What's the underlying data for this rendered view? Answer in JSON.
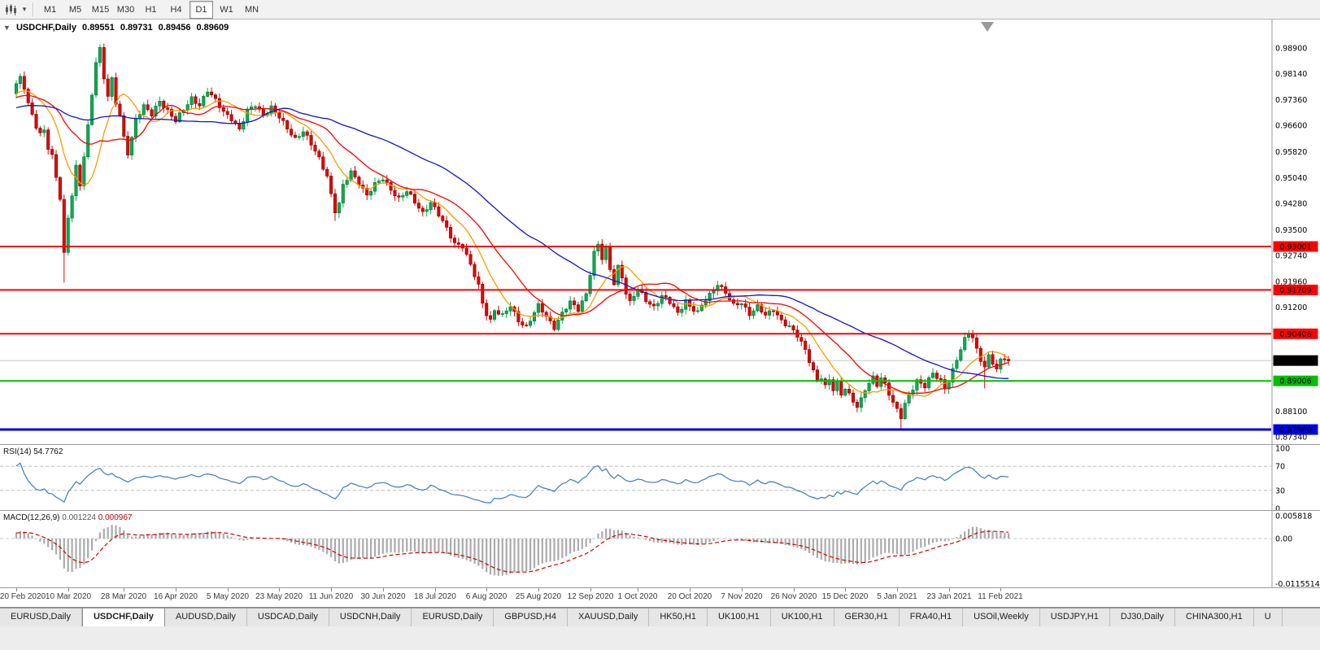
{
  "toolbar": {
    "timeframes": [
      {
        "label": "M1",
        "active": false
      },
      {
        "label": "M5",
        "active": false
      },
      {
        "label": "M15",
        "active": false
      },
      {
        "label": "M30",
        "active": false
      },
      {
        "label": "H1",
        "active": false
      },
      {
        "label": "H4",
        "active": false
      },
      {
        "label": "D1",
        "active": true
      },
      {
        "label": "W1",
        "active": false
      },
      {
        "label": "MN",
        "active": false
      }
    ]
  },
  "title": {
    "symbol": "USDCHF,Daily",
    "open": "0.89551",
    "high": "0.89731",
    "low": "0.89456",
    "close": "0.89609"
  },
  "rsi_panel": {
    "name": "RSI(14)",
    "value": "54.7762",
    "axis": [
      "100",
      "70",
      "30",
      "0"
    ],
    "line_color": "#3E7BC0"
  },
  "macd_panel": {
    "name": "MACD(12,26,9)",
    "value_main": "0.001224",
    "value_signal": "0.000967",
    "axis": [
      "0.005818",
      "0.00",
      "-0.0115514"
    ],
    "histogram_color": "#ABABAB",
    "signal_color": "#D40000"
  },
  "chart": {
    "price_axis_labels": [
      "0.98900",
      "0.98140",
      "0.97360",
      "0.96600",
      "0.95820",
      "0.95040",
      "0.94280",
      "0.93500",
      "0.92740",
      "0.91960",
      "0.91200",
      "0.88100",
      "0.87340"
    ],
    "horizontal_lines": [
      {
        "value": 0.93001,
        "label": "0.93001",
        "color": "#FF0000",
        "width": 2
      },
      {
        "value": 0.91709,
        "label": "0.91709",
        "color": "#FF0000",
        "width": 2
      },
      {
        "value": 0.90406,
        "label": "0.90406",
        "color": "#FF0000",
        "width": 2
      },
      {
        "value": 0.89006,
        "label": "0.89006",
        "color": "#00C000",
        "width": 2
      },
      {
        "value": 0.8756,
        "label": "0.87560",
        "color": "#0000E0",
        "width": 3
      }
    ],
    "current_price": {
      "value": 0.89609,
      "label": "0.89609",
      "box_color": "#000000"
    }
  },
  "chart_data": {
    "type": "candlestick",
    "symbol": "USDCHF",
    "timeframe": "Daily",
    "y_axis_range": {
      "top": 0.99746,
      "bottom": 0.87124
    },
    "x_axis_dates": [
      {
        "label": "20 Feb 2020",
        "idx": 0
      },
      {
        "label": "10 Mar 2020",
        "idx": 13
      },
      {
        "label": "28 Mar 2020",
        "idx": 27
      },
      {
        "label": "16 Apr 2020",
        "idx": 40
      },
      {
        "label": "5 May 2020",
        "idx": 53
      },
      {
        "label": "23 May 2020",
        "idx": 66
      },
      {
        "label": "11 Jun 2020",
        "idx": 79
      },
      {
        "label": "30 Jun 2020",
        "idx": 92
      },
      {
        "label": "18 Jul 2020",
        "idx": 105
      },
      {
        "label": "6 Aug 2020",
        "idx": 118
      },
      {
        "label": "25 Aug 2020",
        "idx": 131
      },
      {
        "label": "12 Sep 2020",
        "idx": 144
      },
      {
        "label": "1 Oct 2020",
        "idx": 156
      },
      {
        "label": "20 Oct 2020",
        "idx": 169
      },
      {
        "label": "7 Nov 2020",
        "idx": 182
      },
      {
        "label": "26 Nov 2020",
        "idx": 195
      },
      {
        "label": "15 Dec 2020",
        "idx": 208
      },
      {
        "label": "5 Jan 2021",
        "idx": 221
      },
      {
        "label": "23 Jan 2021",
        "idx": 234
      },
      {
        "label": "11 Feb 2021",
        "idx": 247
      }
    ],
    "candles": {
      "count": 250,
      "up_color": "#00B050",
      "up_border": "#006B2D",
      "down_color": "#E60000",
      "down_border": "#7A0000",
      "anchors": [
        [
          0,
          0.9778
        ],
        [
          1,
          0.98
        ],
        [
          2,
          0.9772
        ],
        [
          3,
          0.9725
        ],
        [
          4,
          0.9695
        ],
        [
          5,
          0.966
        ],
        [
          6,
          0.9635
        ],
        [
          7,
          0.9645
        ],
        [
          8,
          0.959
        ],
        [
          9,
          0.9565
        ],
        [
          10,
          0.9505
        ],
        [
          11,
          0.9445
        ],
        [
          12,
          0.928
        ],
        [
          13,
          0.939
        ],
        [
          14,
          0.9455
        ],
        [
          15,
          0.9535
        ],
        [
          16,
          0.948
        ],
        [
          17,
          0.9565
        ],
        [
          18,
          0.9655
        ],
        [
          19,
          0.9755
        ],
        [
          20,
          0.985
        ],
        [
          21,
          0.989
        ],
        [
          22,
          0.9805
        ],
        [
          23,
          0.9745
        ],
        [
          24,
          0.9795
        ],
        [
          25,
          0.9725
        ],
        [
          26,
          0.9685
        ],
        [
          27,
          0.9625
        ],
        [
          28,
          0.958
        ],
        [
          29,
          0.9625
        ],
        [
          30,
          0.968
        ],
        [
          32,
          0.9715
        ],
        [
          34,
          0.969
        ],
        [
          36,
          0.9735
        ],
        [
          38,
          0.9705
        ],
        [
          40,
          0.9672
        ],
        [
          42,
          0.9705
        ],
        [
          44,
          0.9742
        ],
        [
          46,
          0.9722
        ],
        [
          48,
          0.9762
        ],
        [
          50,
          0.9732
        ],
        [
          52,
          0.9702
        ],
        [
          54,
          0.9682
        ],
        [
          56,
          0.9645
        ],
        [
          58,
          0.9702
        ],
        [
          60,
          0.9722
        ],
        [
          62,
          0.9692
        ],
        [
          64,
          0.9712
        ],
        [
          66,
          0.9682
        ],
        [
          68,
          0.9652
        ],
        [
          70,
          0.9622
        ],
        [
          72,
          0.9642
        ],
        [
          74,
          0.9602
        ],
        [
          76,
          0.9562
        ],
        [
          78,
          0.9512
        ],
        [
          79,
          0.9455
        ],
        [
          80,
          0.9405
        ],
        [
          81,
          0.9425
        ],
        [
          82,
          0.9478
        ],
        [
          84,
          0.9522
        ],
        [
          86,
          0.9492
        ],
        [
          88,
          0.9452
        ],
        [
          90,
          0.9482
        ],
        [
          92,
          0.9502
        ],
        [
          94,
          0.9472
        ],
        [
          96,
          0.9442
        ],
        [
          98,
          0.9462
        ],
        [
          100,
          0.9432
        ],
        [
          102,
          0.9402
        ],
        [
          104,
          0.9432
        ],
        [
          106,
          0.9392
        ],
        [
          108,
          0.9352
        ],
        [
          110,
          0.9312
        ],
        [
          112,
          0.9302
        ],
        [
          114,
          0.9242
        ],
        [
          116,
          0.9182
        ],
        [
          117,
          0.9132
        ],
        [
          118,
          0.9102
        ],
        [
          119,
          0.9082
        ],
        [
          120,
          0.9112
        ],
        [
          122,
          0.9092
        ],
        [
          124,
          0.9122
        ],
        [
          126,
          0.9082
        ],
        [
          128,
          0.9062
        ],
        [
          130,
          0.9102
        ],
        [
          131,
          0.9122
        ],
        [
          133,
          0.9092
        ],
        [
          135,
          0.9062
        ],
        [
          137,
          0.9102
        ],
        [
          139,
          0.9132
        ],
        [
          141,
          0.9112
        ],
        [
          143,
          0.9162
        ],
        [
          144,
          0.9222
        ],
        [
          145,
          0.9282
        ],
        [
          146,
          0.9305
        ],
        [
          147,
          0.9262
        ],
        [
          148,
          0.9292
        ],
        [
          149,
          0.9232
        ],
        [
          150,
          0.9192
        ],
        [
          151,
          0.9242
        ],
        [
          152,
          0.9212
        ],
        [
          153,
          0.9162
        ],
        [
          154,
          0.9132
        ],
        [
          155,
          0.9152
        ],
        [
          156,
          0.9172
        ],
        [
          158,
          0.9142
        ],
        [
          160,
          0.9122
        ],
        [
          162,
          0.9152
        ],
        [
          164,
          0.9132
        ],
        [
          166,
          0.9102
        ],
        [
          168,
          0.9142
        ],
        [
          169,
          0.9122
        ],
        [
          171,
          0.9102
        ],
        [
          173,
          0.9142
        ],
        [
          175,
          0.9172
        ],
        [
          176,
          0.9192
        ],
        [
          178,
          0.9162
        ],
        [
          180,
          0.9122
        ],
        [
          182,
          0.9132
        ],
        [
          184,
          0.9102
        ],
        [
          186,
          0.9122
        ],
        [
          188,
          0.9092
        ],
        [
          190,
          0.9112
        ],
        [
          192,
          0.9082
        ],
        [
          194,
          0.9062
        ],
        [
          196,
          0.9032
        ],
        [
          197,
          0.9012
        ],
        [
          198,
          0.8992
        ],
        [
          199,
          0.8962
        ],
        [
          200,
          0.8932
        ],
        [
          201,
          0.8902
        ],
        [
          202,
          0.8912
        ],
        [
          203,
          0.8882
        ],
        [
          204,
          0.8902
        ],
        [
          205,
          0.8872
        ],
        [
          206,
          0.8892
        ],
        [
          207,
          0.8862
        ],
        [
          208,
          0.8882
        ],
        [
          209,
          0.8862
        ],
        [
          210,
          0.8842
        ],
        [
          211,
          0.8822
        ],
        [
          212,
          0.8842
        ],
        [
          213,
          0.8872
        ],
        [
          214,
          0.8892
        ],
        [
          215,
          0.8912
        ],
        [
          216,
          0.8892
        ],
        [
          217,
          0.8912
        ],
        [
          218,
          0.8892
        ],
        [
          219,
          0.8862
        ],
        [
          220,
          0.8832
        ],
        [
          221,
          0.8812
        ],
        [
          222,
          0.8792
        ],
        [
          223,
          0.8832
        ],
        [
          224,
          0.8862
        ],
        [
          226,
          0.8902
        ],
        [
          228,
          0.8882
        ],
        [
          230,
          0.8922
        ],
        [
          232,
          0.8902
        ],
        [
          233,
          0.8882
        ],
        [
          234,
          0.8902
        ],
        [
          235,
          0.8932
        ],
        [
          236,
          0.8962
        ],
        [
          237,
          0.8992
        ],
        [
          238,
          0.9022
        ],
        [
          239,
          0.9042
        ],
        [
          240,
          0.9032
        ],
        [
          241,
          0.8996
        ],
        [
          242,
          0.8966
        ],
        [
          243,
          0.8942
        ],
        [
          244,
          0.8972
        ],
        [
          245,
          0.8952
        ],
        [
          246,
          0.8932
        ],
        [
          247,
          0.8962
        ],
        [
          248,
          0.8972
        ],
        [
          249,
          0.8961
        ]
      ],
      "wick_overrides": {
        "12": {
          "low": 0.9193
        },
        "21": {
          "high": 0.9901
        },
        "80": {
          "low": 0.9376
        },
        "146": {
          "high": 0.9316
        },
        "222": {
          "low": 0.8758
        },
        "239": {
          "high": 0.9052
        },
        "243": {
          "low": 0.8878
        }
      }
    },
    "moving_averages": [
      {
        "name": "fast",
        "period": 10,
        "type": "sma",
        "color": "#FF9900"
      },
      {
        "name": "medium",
        "period": 21,
        "type": "sma",
        "color": "#FF0000"
      },
      {
        "name": "slow",
        "period": 50,
        "type": "sma",
        "color": "#1414CC"
      }
    ],
    "rsi": {
      "period": 14,
      "last_value": 54.7762,
      "levels": [
        70,
        30
      ]
    },
    "macd": {
      "fast": 12,
      "slow": 26,
      "signal": 9,
      "last_main": 0.001224,
      "last_signal": 0.000967,
      "axis_max": 0.005818,
      "axis_min": -0.0115514
    }
  },
  "tabs": [
    {
      "label": "EURUSD,Daily",
      "active": false
    },
    {
      "label": "USDCHF,Daily",
      "active": true
    },
    {
      "label": "AUDUSD,Daily",
      "active": false
    },
    {
      "label": "USDCAD,Daily",
      "active": false
    },
    {
      "label": "USDCNH,Daily",
      "active": false
    },
    {
      "label": "EURUSD,Daily",
      "active": false
    },
    {
      "label": "GBPUSD,H4",
      "active": false
    },
    {
      "label": "XAUUSD,Daily",
      "active": false
    },
    {
      "label": "HK50,H1",
      "active": false
    },
    {
      "label": "UK100,H1",
      "active": false
    },
    {
      "label": "UK100,H1",
      "active": false
    },
    {
      "label": "GER30,H1",
      "active": false
    },
    {
      "label": "FRA40,H1",
      "active": false
    },
    {
      "label": "USOil,Weekly",
      "active": false
    },
    {
      "label": "USDJPY,H1",
      "active": false
    },
    {
      "label": "DJ30,Daily",
      "active": false
    },
    {
      "label": "CHINA300,H1",
      "active": false
    },
    {
      "label": "U",
      "active": false
    }
  ]
}
